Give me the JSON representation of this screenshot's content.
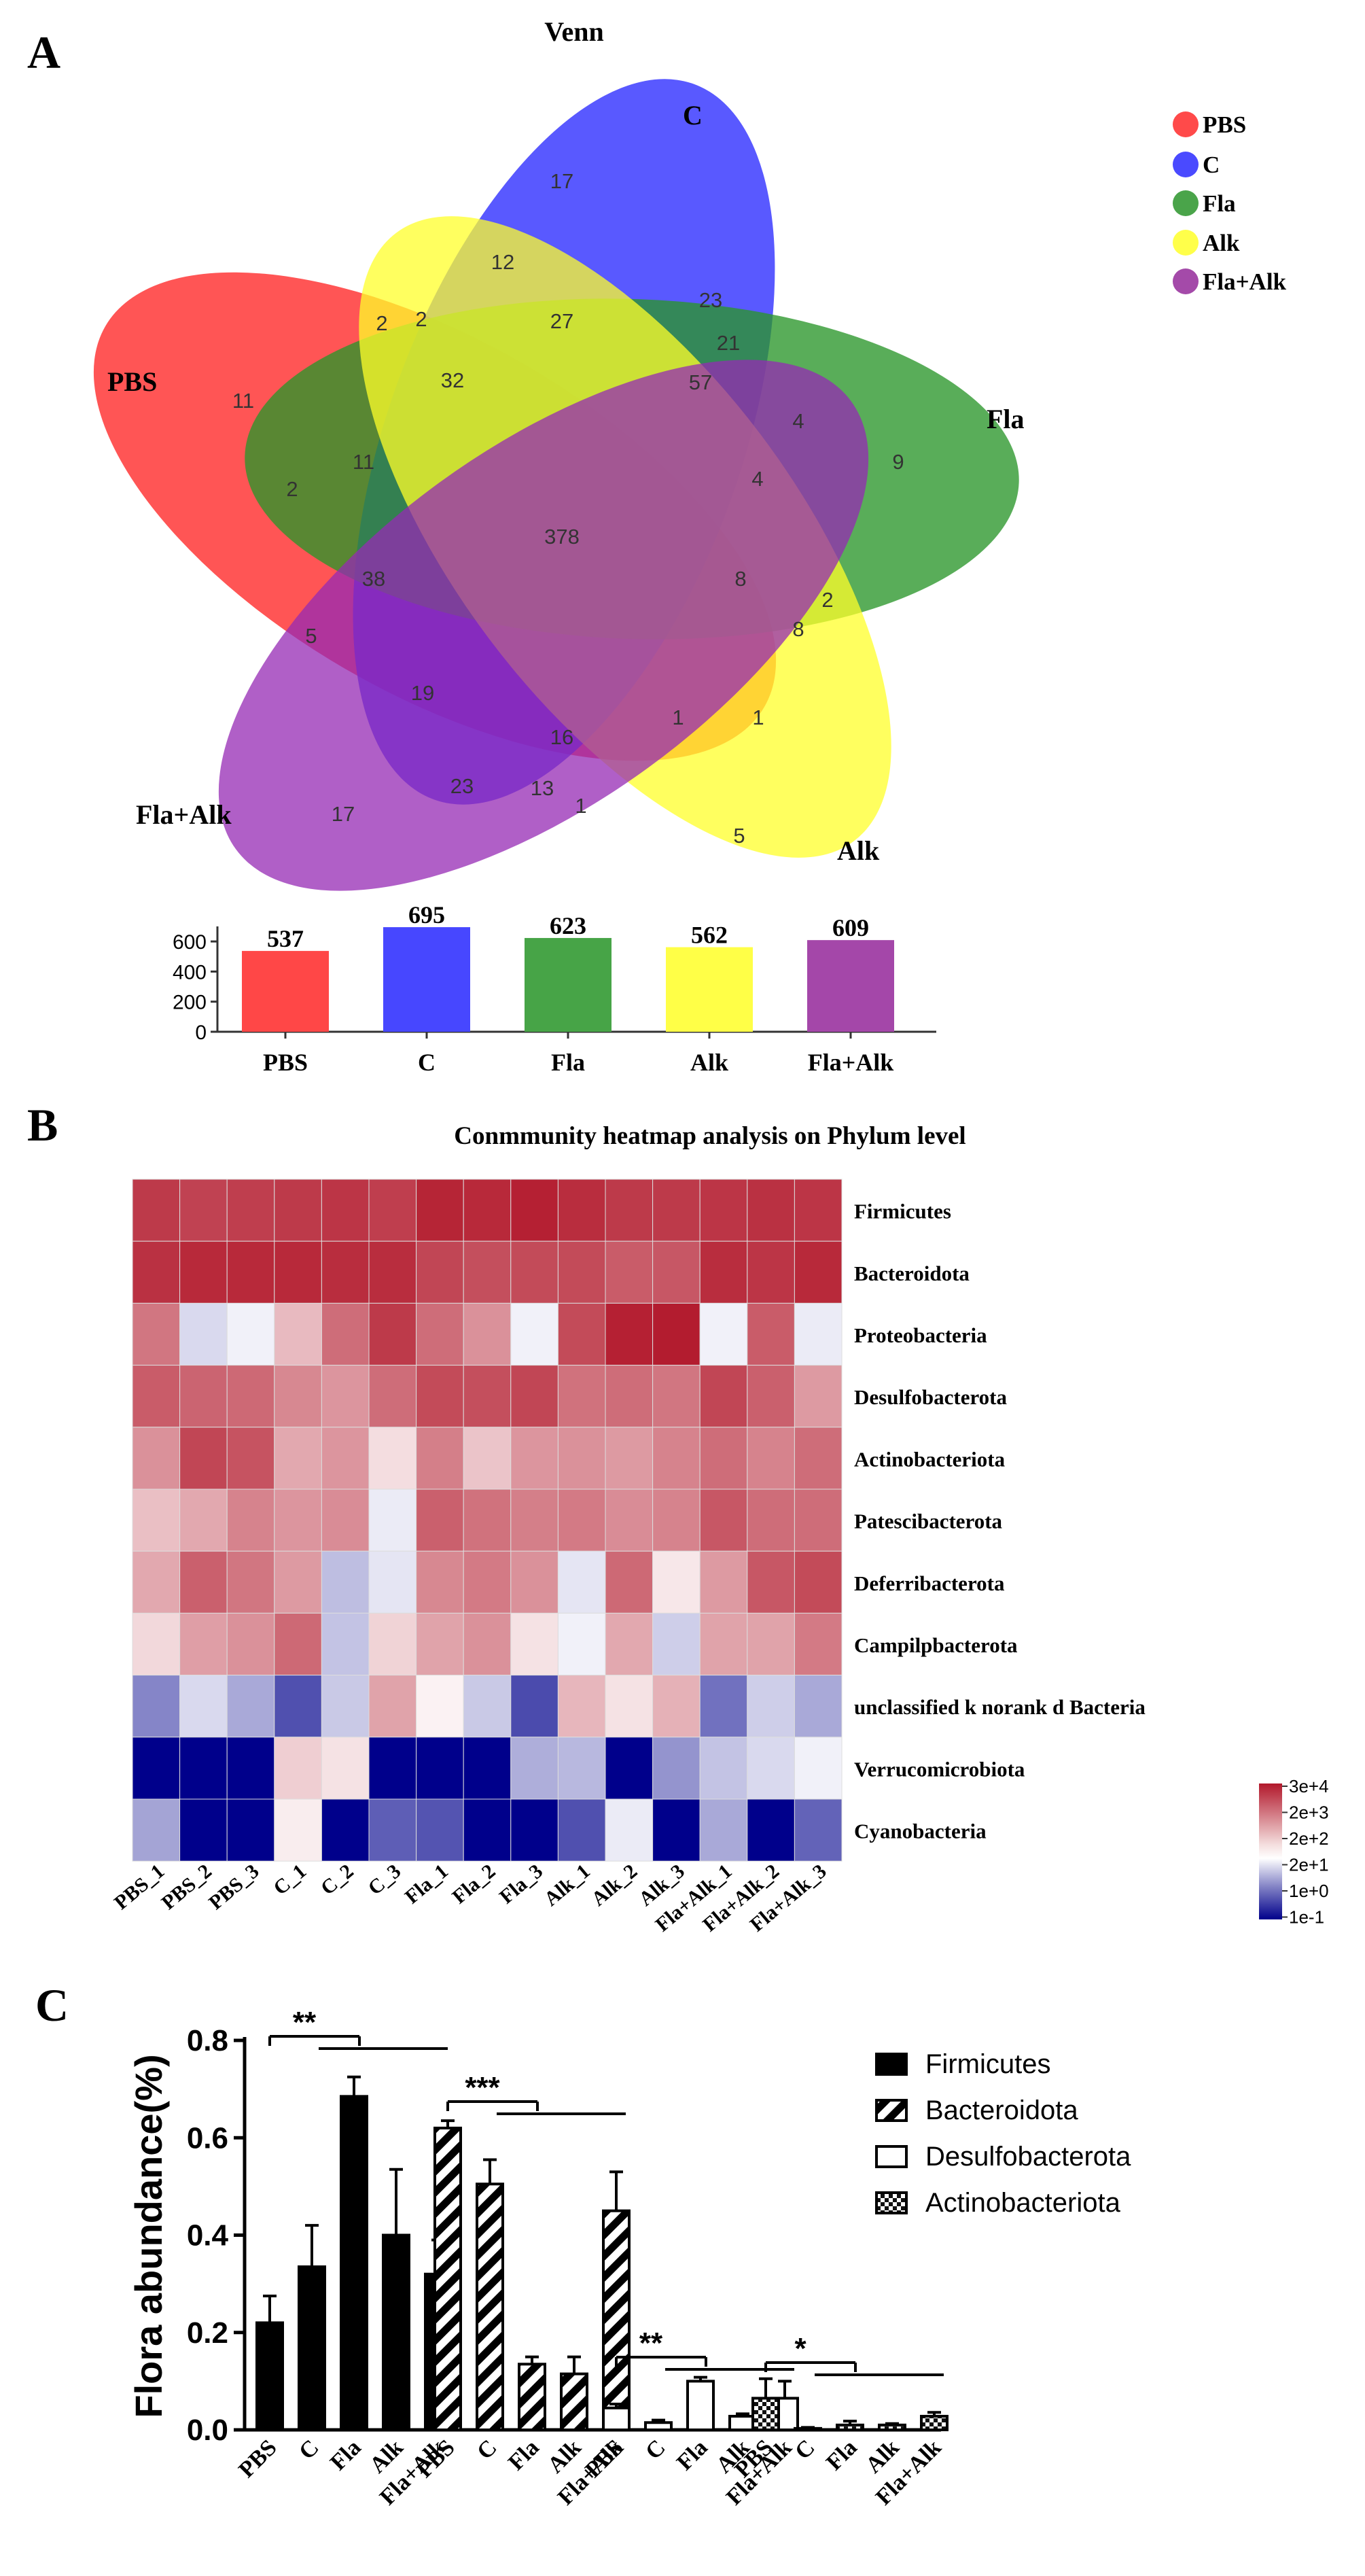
{
  "panels": {
    "A": {
      "label": "A",
      "title": "Venn",
      "sets": [
        {
          "name": "PBS",
          "color": "#ff2a2a"
        },
        {
          "name": "C",
          "color": "#2a2aff"
        },
        {
          "name": "Fla",
          "color": "#2a962a"
        },
        {
          "name": "Alk",
          "color": "#ffff2a"
        },
        {
          "name": "Fla+Alk",
          "color": "#962ab4"
        }
      ],
      "region_counts": [
        "17",
        "12",
        "2",
        "27",
        "23",
        "11",
        "32",
        "57",
        "21",
        "4",
        "9",
        "11",
        "2",
        "4",
        "378",
        "8",
        "38",
        "5",
        "2",
        "8",
        "16",
        "1",
        "1",
        "23",
        "13",
        "1",
        "17",
        "5",
        "19",
        "2"
      ],
      "totals_chart": {
        "type": "bar",
        "categories": [
          "PBS",
          "C",
          "Fla",
          "Alk",
          "Fla+Alk"
        ],
        "values": [
          537,
          695,
          623,
          562,
          609
        ],
        "value_labels": [
          "537",
          "695",
          "623",
          "562",
          "609"
        ],
        "colors": [
          "#ff4747",
          "#4747ff",
          "#47a447",
          "#ffff47",
          "#a447a9"
        ],
        "ylim": [
          0,
          700
        ],
        "ticks": [
          "0",
          "200",
          "400",
          "600"
        ]
      }
    },
    "B": {
      "label": "B",
      "title": "Conmmunity heatmap analysis on Phylum level",
      "heatmap": {
        "type": "heatmap",
        "samples": [
          "PBS_1",
          "PBS_2",
          "PBS_3",
          "C_1",
          "C_2",
          "C_3",
          "Fla_1",
          "Fla_2",
          "Fla_3",
          "Alk_1",
          "Alk_2",
          "Alk_3",
          "Fla+Alk_1",
          "Fla+Alk_2",
          "Fla+Alk_3"
        ],
        "phyla": [
          "Firmicutes",
          "Bacteroidota",
          "Proteobacteria",
          "Desulfobacterota",
          "Actinobacteriota",
          "Patescibacterota",
          "Deferribacterota",
          "Campilpbacterota",
          "unclassified k norank d Bacteria",
          "Verrucomicrobiota",
          "Cyanobacteria"
        ],
        "values": [
          [
            4.2,
            4.0,
            4.1,
            4.2,
            4.3,
            4.1,
            4.7,
            4.6,
            4.8,
            4.5,
            4.2,
            4.2,
            4.3,
            4.4,
            4.3
          ],
          [
            4.4,
            4.6,
            4.6,
            4.6,
            4.5,
            4.5,
            3.9,
            3.7,
            3.8,
            3.8,
            3.4,
            3.5,
            4.5,
            4.3,
            4.6
          ],
          [
            2.8,
            -0.6,
            -0.2,
            1.3,
            3.0,
            4.2,
            3.0,
            2.2,
            -0.2,
            3.8,
            4.8,
            4.9,
            -0.2,
            3.4,
            -0.3
          ],
          [
            3.4,
            3.2,
            3.1,
            2.4,
            2.1,
            3.0,
            3.8,
            3.7,
            3.9,
            2.9,
            3.0,
            2.8,
            3.9,
            3.3,
            2.0
          ],
          [
            2.2,
            3.9,
            3.6,
            1.7,
            2.1,
            0.6,
            2.6,
            1.1,
            2.1,
            2.2,
            2.0,
            2.5,
            3.0,
            2.5,
            3.0
          ],
          [
            1.2,
            1.7,
            2.5,
            2.1,
            2.3,
            -0.3,
            3.3,
            2.9,
            2.6,
            2.7,
            2.3,
            2.5,
            3.5,
            3.0,
            3.0
          ],
          [
            1.7,
            3.3,
            2.8,
            2.0,
            -1.1,
            -0.4,
            2.4,
            2.7,
            2.2,
            -0.4,
            3.1,
            0.4,
            2.0,
            3.5,
            3.8
          ],
          [
            0.7,
            1.9,
            2.2,
            3.1,
            -1.0,
            0.8,
            1.8,
            2.2,
            0.5,
            -0.2,
            1.7,
            -0.8,
            1.8,
            1.8,
            2.7
          ],
          [
            -2.2,
            -0.6,
            -1.5,
            -3.3,
            -0.9,
            1.8,
            0.2,
            -0.9,
            -3.4,
            1.4,
            0.5,
            1.5,
            -2.6,
            -0.8,
            -1.5
          ],
          [
            -5.0,
            -5.0,
            -5.0,
            0.9,
            0.5,
            -5.0,
            -5.0,
            -5.0,
            -1.4,
            -1.2,
            -5.0,
            -1.9,
            -1.0,
            -0.6,
            -0.2
          ],
          [
            -1.6,
            -5.0,
            -5.0,
            0.3,
            -5.0,
            -3.0,
            -3.2,
            -5.0,
            -5.0,
            -3.3,
            -0.3,
            -5.0,
            -1.5,
            -5.0,
            -2.9
          ]
        ],
        "value_scale": "log-scaled abundance (approx.)",
        "legend_labels": [
          "3e+4",
          "2e+3",
          "2e+2",
          "2e+1",
          "1e+0",
          "1e-1"
        ],
        "colormap": [
          "#00008b",
          "#ffffff",
          "#b2182b"
        ]
      }
    },
    "C": {
      "label": "C",
      "chart_data": {
        "type": "bar",
        "ylabel": "Flora abundance(%)",
        "ylim": [
          0,
          0.8
        ],
        "yticks": [
          "0.0",
          "0.2",
          "0.4",
          "0.6",
          "0.8"
        ],
        "categories": [
          "PBS",
          "C",
          "Fla",
          "Alk",
          "Fla+Alk"
        ],
        "series": [
          {
            "name": "Firmicutes",
            "pattern": "solid",
            "values": [
              0.22,
              0.335,
              0.685,
              0.4,
              0.32
            ],
            "errors": [
              0.055,
              0.085,
              0.04,
              0.135,
              0.07
            ]
          },
          {
            "name": "Bacteroidota",
            "pattern": "hatch",
            "values": [
              0.62,
              0.505,
              0.135,
              0.115,
              0.45
            ],
            "errors": [
              0.015,
              0.05,
              0.015,
              0.035,
              0.08
            ]
          },
          {
            "name": "Desulfobacterota",
            "pattern": "open",
            "values": [
              0.045,
              0.015,
              0.1,
              0.028,
              0.065
            ],
            "errors": [
              0.008,
              0.005,
              0.008,
              0.005,
              0.035
            ]
          },
          {
            "name": "Actinobacteriota",
            "pattern": "check",
            "values": [
              0.065,
              0.003,
              0.01,
              0.01,
              0.028
            ],
            "errors": [
              0.04,
              0.002,
              0.008,
              0.003,
              0.008
            ]
          }
        ],
        "significance": [
          {
            "group": "Firmicutes",
            "label": "**"
          },
          {
            "group": "Bacteroidota",
            "label": "***"
          },
          {
            "group": "Desulfobacterota",
            "label": "**"
          },
          {
            "group": "Actinobacteriota",
            "label": "*"
          }
        ],
        "legend": [
          "Firmicutes",
          "Bacteroidota",
          "Desulfobacterota",
          "Actinobacteriota"
        ]
      }
    }
  }
}
